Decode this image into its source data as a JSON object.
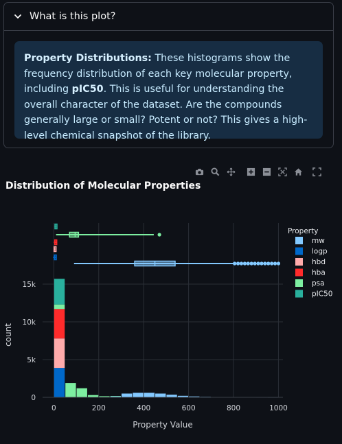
{
  "expander": {
    "title": "What is this plot?",
    "info_bold": "Property Distributions:",
    "info_text_1": " These histograms show the frequency distribution of each key molecular property, including ",
    "info_bold_2": "pIC50",
    "info_text_2": ". This is useful for understanding the overall character of the dataset. Are the compounds generally large or small? Potent or not? This gives a high-level chemical snapshot of the library."
  },
  "modebar": [
    "camera-icon",
    "zoom-icon",
    "pan-icon",
    "zoom-in-icon",
    "zoom-out-icon",
    "autoscale-icon",
    "home-icon",
    "fullscreen-icon"
  ],
  "colors": {
    "mw": "#83c9ff",
    "logp": "#0068c9",
    "hbd": "#ffabab",
    "hba": "#ff2b2b",
    "psa": "#7defa1",
    "pIC50": "#29b09d"
  },
  "chart_data": {
    "type": "bar",
    "title": "Distribution of Molecular Properties",
    "xlabel": "Property Value",
    "ylabel": "count",
    "xlim": [
      -50,
      1020
    ],
    "ylim": [
      0,
      16000
    ],
    "xticks": [
      0,
      200,
      400,
      600,
      800,
      1000
    ],
    "yticks": [
      0,
      5000,
      10000,
      15000
    ],
    "ytick_labels": [
      "0",
      "5k",
      "10k",
      "15k"
    ],
    "legend_title": "Property",
    "legend_position": "right",
    "bin_width": 50,
    "bins": [
      0,
      50,
      100,
      150,
      200,
      250,
      300,
      350,
      400,
      450,
      500,
      550,
      600,
      650,
      700,
      750,
      800,
      850,
      900,
      950
    ],
    "series": [
      {
        "name": "mw",
        "values": [
          0,
          0,
          0,
          0,
          50,
          150,
          500,
          600,
          600,
          500,
          350,
          200,
          120,
          70,
          40,
          25,
          20,
          10,
          8,
          6
        ]
      },
      {
        "name": "logp",
        "values": [
          3900,
          0,
          0,
          0,
          0,
          0,
          0,
          0,
          0,
          0,
          0,
          0,
          0,
          0,
          0,
          0,
          0,
          0,
          0,
          0
        ]
      },
      {
        "name": "hbd",
        "values": [
          3900,
          0,
          0,
          0,
          0,
          0,
          0,
          0,
          0,
          0,
          0,
          0,
          0,
          0,
          0,
          0,
          0,
          0,
          0,
          0
        ]
      },
      {
        "name": "hba",
        "values": [
          3900,
          0,
          0,
          0,
          0,
          0,
          0,
          0,
          0,
          0,
          0,
          0,
          0,
          0,
          0,
          0,
          0,
          0,
          0,
          0
        ]
      },
      {
        "name": "psa",
        "values": [
          600,
          1900,
          1200,
          300,
          100,
          20,
          0,
          0,
          0,
          0,
          0,
          0,
          0,
          0,
          0,
          0,
          0,
          0,
          0,
          0
        ]
      },
      {
        "name": "pIC50",
        "values": [
          3400,
          0,
          0,
          0,
          0,
          0,
          0,
          0,
          0,
          0,
          0,
          0,
          0,
          0,
          0,
          0,
          0,
          0,
          0,
          0
        ]
      }
    ],
    "box_summaries": [
      {
        "name": "mw",
        "min": 90,
        "q1": 360,
        "median": 450,
        "q3": 540,
        "max": 800,
        "outliers": [
          805,
          820,
          835,
          850,
          865,
          880,
          895,
          910,
          925,
          940,
          955,
          970,
          985,
          1000
        ]
      },
      {
        "name": "psa",
        "min": 10,
        "q1": 70,
        "median": 95,
        "q3": 110,
        "max": 445,
        "outliers": [
          470
        ]
      },
      {
        "name": "pIC50",
        "min": 3,
        "q1": 5,
        "median": 6,
        "q3": 7,
        "max": 10,
        "outliers": []
      },
      {
        "name": "hba",
        "min": 0,
        "q1": 4,
        "median": 5,
        "q3": 7,
        "max": 12,
        "outliers": []
      },
      {
        "name": "hbd",
        "min": 0,
        "q1": 1,
        "median": 2,
        "q3": 3,
        "max": 6,
        "outliers": []
      },
      {
        "name": "logp",
        "min": -3,
        "q1": 2,
        "median": 3,
        "q3": 4,
        "max": 9,
        "outliers": []
      }
    ]
  }
}
